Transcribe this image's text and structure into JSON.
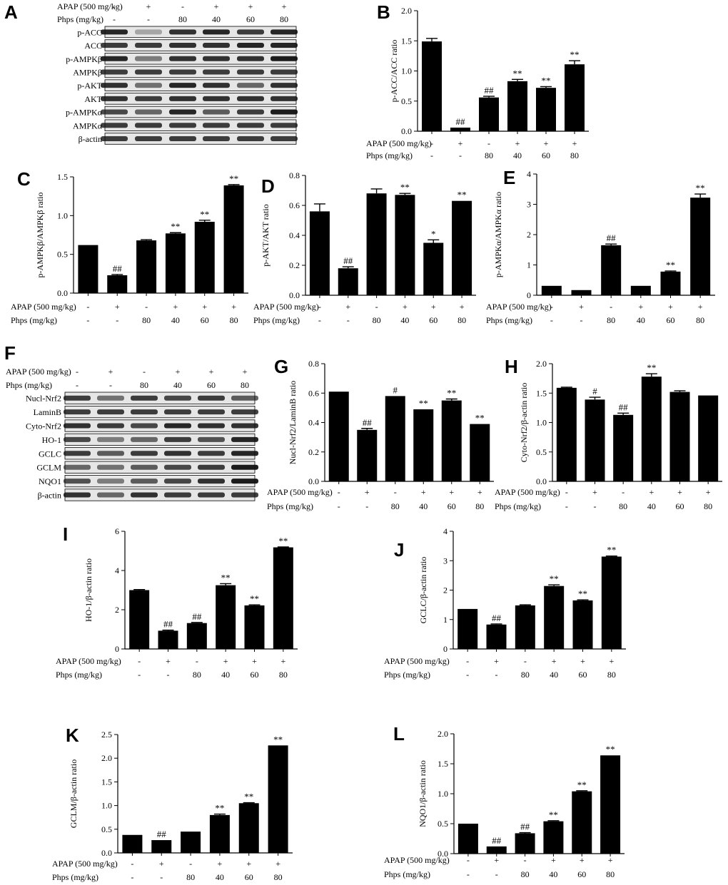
{
  "panels": {
    "A": {
      "letter": "A",
      "apap_label": "APAP (500 mg/kg)",
      "phps_label": "Phps (mg/kg)",
      "apap": [
        "-",
        "+",
        "-",
        "+",
        "+",
        "+"
      ],
      "phps": [
        "-",
        "-",
        "80",
        "40",
        "60",
        "80"
      ],
      "bands": [
        "p-ACC",
        "ACC",
        "p-AMPKβ",
        "AMPKβ",
        "p-AKT",
        "AKT",
        "p-AMPKα",
        "AMPKα",
        "β-actin"
      ]
    },
    "F": {
      "letter": "F",
      "apap_label": "APAP (500 mg/kg)",
      "phps_label": "Phps (mg/kg)",
      "apap": [
        "-",
        "+",
        "-",
        "+",
        "+",
        "+"
      ],
      "phps": [
        "-",
        "-",
        "80",
        "40",
        "60",
        "80"
      ],
      "bands": [
        "Nucl-Nrf2",
        "LaminB",
        "Cyto-Nrf2",
        "HO-1",
        "GCLC",
        "GCLM",
        "NQO1",
        "β-actin"
      ]
    }
  },
  "chart_data": [
    {
      "id": "B",
      "letter": "B",
      "type": "bar",
      "ylabel": "p-ACC/ACC ratio",
      "ylim": [
        0,
        2.0
      ],
      "yticks": [
        "0.0",
        "0.5",
        "1.0",
        "1.5",
        "2.0"
      ],
      "values": [
        1.49,
        0.06,
        0.56,
        0.83,
        0.72,
        1.11
      ],
      "errors": [
        0.05,
        0.0,
        0.02,
        0.03,
        0.02,
        0.06
      ],
      "sig": [
        "",
        "##",
        "##",
        "**",
        "**",
        "**"
      ],
      "apap_label": "APAP (500 mg/kg)",
      "phps_label": "Phps (mg/kg)",
      "apap": [
        "-",
        "+",
        "-",
        "+",
        "+",
        "+"
      ],
      "phps": [
        "-",
        "-",
        "80",
        "40",
        "60",
        "80"
      ]
    },
    {
      "id": "C",
      "letter": "C",
      "type": "bar",
      "ylabel": "p-AMPKβ/AMPKβ ratio",
      "ylim": [
        0,
        1.5
      ],
      "yticks": [
        "0.0",
        "0.5",
        "1.0",
        "1.5"
      ],
      "values": [
        0.62,
        0.23,
        0.68,
        0.77,
        0.92,
        1.39
      ],
      "errors": [
        0.0,
        0.01,
        0.01,
        0.01,
        0.02,
        0.01
      ],
      "sig": [
        "",
        "##",
        "",
        "**",
        "**",
        "**"
      ],
      "apap_label": "APAP (500 mg/kg)",
      "phps_label": "Phps (mg/kg)",
      "apap": [
        "-",
        "+",
        "-",
        "+",
        "+",
        "+"
      ],
      "phps": [
        "-",
        "-",
        "80",
        "40",
        "60",
        "80"
      ]
    },
    {
      "id": "D",
      "letter": "D",
      "type": "bar",
      "ylabel": "p-AKT/AKT ratio",
      "ylim": [
        0,
        0.8
      ],
      "yticks": [
        "0.0",
        "0.2",
        "0.4",
        "0.6",
        "0.8"
      ],
      "values": [
        0.56,
        0.18,
        0.68,
        0.67,
        0.35,
        0.63
      ],
      "errors": [
        0.05,
        0.01,
        0.03,
        0.01,
        0.02,
        0.0
      ],
      "sig": [
        "",
        "##",
        "",
        "**",
        "*",
        "**"
      ],
      "apap_label": "APAP (500 mg/kg)",
      "phps_label": "Phps (mg/kg)",
      "apap": [
        "-",
        "+",
        "-",
        "+",
        "+",
        "+"
      ],
      "phps": [
        "-",
        "-",
        "80",
        "40",
        "60",
        "80"
      ]
    },
    {
      "id": "E",
      "letter": "E",
      "type": "bar",
      "ylabel": "p-AMPKα/AMPKα ratio",
      "ylim": [
        0,
        4
      ],
      "yticks": [
        "0",
        "1",
        "2",
        "3",
        "4"
      ],
      "values": [
        0.31,
        0.17,
        1.65,
        0.31,
        0.78,
        3.22
      ],
      "errors": [
        0.0,
        0.0,
        0.04,
        0.0,
        0.02,
        0.12
      ],
      "sig": [
        "",
        "",
        "##",
        "",
        "**",
        "**"
      ],
      "apap_label": "APAP (500 mg/kg)",
      "phps_label": "Phps (mg/kg)",
      "apap": [
        "-",
        "+",
        "-",
        "+",
        "+",
        "+"
      ],
      "phps": [
        "-",
        "-",
        "80",
        "40",
        "60",
        "80"
      ]
    },
    {
      "id": "G",
      "letter": "G",
      "type": "bar",
      "ylabel": "Nucl-Nrf2/LaminB ratio",
      "ylim": [
        0,
        0.8
      ],
      "yticks": [
        "0.0",
        "0.2",
        "0.4",
        "0.6",
        "0.8"
      ],
      "values": [
        0.61,
        0.35,
        0.58,
        0.49,
        0.55,
        0.39
      ],
      "errors": [
        0.0,
        0.01,
        0.0,
        0.0,
        0.01,
        0.0
      ],
      "sig": [
        "",
        "##",
        "#",
        "**",
        "**",
        "**"
      ],
      "apap_label": "APAP (500 mg/kg)",
      "phps_label": "Phps (mg/kg)",
      "apap": [
        "-",
        "+",
        "-",
        "+",
        "+",
        "+"
      ],
      "phps": [
        "-",
        "-",
        "80",
        "40",
        "60",
        "80"
      ]
    },
    {
      "id": "H",
      "letter": "H",
      "type": "bar",
      "ylabel": "Cyto-Nrf2/β-actin ratio",
      "ylim": [
        0,
        2.0
      ],
      "yticks": [
        "0.0",
        "0.5",
        "1.0",
        "1.5",
        "2.0"
      ],
      "values": [
        1.59,
        1.39,
        1.13,
        1.78,
        1.52,
        1.46
      ],
      "errors": [
        0.01,
        0.04,
        0.03,
        0.05,
        0.02,
        0.0
      ],
      "sig": [
        "",
        "#",
        "##",
        "**",
        "",
        ""
      ],
      "apap_label": "APAP (500 mg/kg)",
      "phps_label": "Phps (mg/kg)",
      "apap": [
        "-",
        "+",
        "-",
        "+",
        "+",
        "+"
      ],
      "phps": [
        "-",
        "-",
        "80",
        "40",
        "60",
        "80"
      ]
    },
    {
      "id": "I",
      "letter": "I",
      "type": "bar",
      "ylabel": "HO-1/β-actin ratio",
      "ylim": [
        0,
        6
      ],
      "yticks": [
        "0",
        "2",
        "4",
        "6"
      ],
      "values": [
        3.0,
        0.93,
        1.32,
        3.25,
        2.22,
        5.18
      ],
      "errors": [
        0.03,
        0.03,
        0.03,
        0.08,
        0.03,
        0.02
      ],
      "sig": [
        "",
        "##",
        "##",
        "**",
        "**",
        "**"
      ],
      "apap_label": "APAP (500 mg/kg)",
      "phps_label": "Phps (mg/kg)",
      "apap": [
        "-",
        "+",
        "-",
        "+",
        "+",
        "+"
      ],
      "phps": [
        "-",
        "-",
        "80",
        "40",
        "60",
        "80"
      ]
    },
    {
      "id": "J",
      "letter": "J",
      "type": "bar",
      "ylabel": "GCLC/β-actin ratio",
      "ylim": [
        0,
        4
      ],
      "yticks": [
        "0",
        "1",
        "2",
        "3",
        "4"
      ],
      "values": [
        1.36,
        0.83,
        1.48,
        2.14,
        1.65,
        3.14
      ],
      "errors": [
        0.0,
        0.02,
        0.02,
        0.04,
        0.02,
        0.02
      ],
      "sig": [
        "",
        "##",
        "",
        "**",
        "**",
        "**"
      ],
      "apap_label": "APAP (500 mg/kg)",
      "phps_label": "Phps (mg/kg)",
      "apap": [
        "-",
        "+",
        "-",
        "+",
        "+",
        "+"
      ],
      "phps": [
        "-",
        "-",
        "80",
        "40",
        "60",
        "80"
      ]
    },
    {
      "id": "K",
      "letter": "K",
      "type": "bar",
      "ylabel": "GCLM/β-actin ratio",
      "ylim": [
        0,
        2.5
      ],
      "yticks": [
        "0.0",
        "0.5",
        "1.0",
        "1.5",
        "2.0",
        "2.5"
      ],
      "values": [
        0.38,
        0.27,
        0.45,
        0.8,
        1.05,
        2.27
      ],
      "errors": [
        0.0,
        0.0,
        0.0,
        0.02,
        0.01,
        0.0
      ],
      "sig": [
        "",
        "##",
        "",
        "**",
        "**",
        "**"
      ],
      "apap_label": "APAP (500 mg/kg)",
      "phps_label": "Phps (mg/kg)",
      "apap": [
        "-",
        "+",
        "-",
        "+",
        "+",
        "+"
      ],
      "phps": [
        "-",
        "-",
        "80",
        "40",
        "60",
        "80"
      ]
    },
    {
      "id": "L",
      "letter": "L",
      "type": "bar",
      "ylabel": "NQO1/β-actin ratio",
      "ylim": [
        0,
        2.0
      ],
      "yticks": [
        "0.0",
        "0.5",
        "1.0",
        "1.5",
        "2.0"
      ],
      "values": [
        0.5,
        0.12,
        0.34,
        0.54,
        1.04,
        1.64
      ],
      "errors": [
        0.0,
        0.0,
        0.01,
        0.01,
        0.01,
        0.0
      ],
      "sig": [
        "",
        "##",
        "##",
        "**",
        "**",
        "**"
      ],
      "apap_label": "APAP (500 mg/kg)",
      "phps_label": "Phps (mg/kg)",
      "apap": [
        "-",
        "+",
        "-",
        "+",
        "+",
        "+"
      ],
      "phps": [
        "-",
        "-",
        "80",
        "40",
        "60",
        "80"
      ]
    }
  ]
}
